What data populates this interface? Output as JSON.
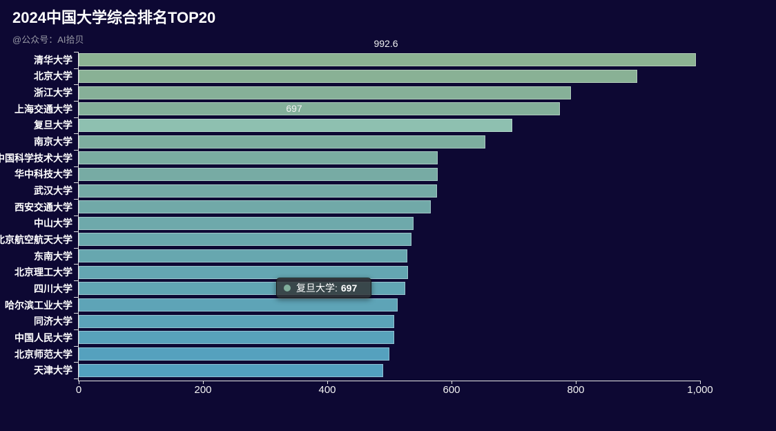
{
  "header": {
    "title": "2024中国大学综合排名TOP20",
    "subtitle": "@公众号：AI拾贝"
  },
  "colors": {
    "background": "#0d0833",
    "axis": "#e6e6e6",
    "title_text": "#ffffff",
    "subtitle_text": "#999aa6",
    "bar_border": "rgba(255,255,255,0.35)",
    "hover_color": "#8ec0b0",
    "tooltip_background": "rgba(50,54,56,0.85)"
  },
  "chart_data": {
    "type": "bar",
    "orientation": "horizontal",
    "title": "2024中国大学综合排名TOP20",
    "categories": [
      "清华大学",
      "北京大学",
      "浙江大学",
      "上海交通大学",
      "复旦大学",
      "南京大学",
      "中国科学技术大学",
      "华中科技大学",
      "武汉大学",
      "西安交通大学",
      "中山大学",
      "北京航空航天大学",
      "东南大学",
      "北京理工大学",
      "四川大学",
      "哈尔滨工业大学",
      "同济大学",
      "中国人民大学",
      "北京师范大学",
      "天津大学"
    ],
    "values": [
      992.6,
      898,
      792,
      774,
      697,
      654,
      577,
      577,
      576,
      566,
      539,
      535,
      529,
      530,
      525,
      513,
      508,
      507,
      500,
      490
    ],
    "bar_colors": [
      "#8cb293",
      "#89b195",
      "#86b098",
      "#83af9a",
      "#80ae9c",
      "#7dad9f",
      "#7aaca1",
      "#77aba4",
      "#74aaa6",
      "#71a9a8",
      "#6ea9ab",
      "#6aa8ad",
      "#67a7af",
      "#64a6b2",
      "#61a5b4",
      "#5ea4b7",
      "#5ba3b9",
      "#58a2bb",
      "#55a1be",
      "#52a0c0"
    ],
    "hovered_index": 4,
    "hover_color": "#8ec0b0",
    "xlim": [
      0,
      1000
    ],
    "x_tick_labels": [
      "0",
      "200",
      "400",
      "600",
      "800",
      "1,000"
    ],
    "x_tick_values": [
      0,
      200,
      400,
      600,
      800,
      1000
    ],
    "grid": false,
    "legend": false,
    "floating_labels": [
      {
        "text": "992.6",
        "x": 559,
        "y": 63
      },
      {
        "text": "697",
        "x": 426,
        "y": 157
      }
    ]
  },
  "tooltip": {
    "name": "复旦大学:",
    "value": "697",
    "marker_color": "#80ae9c"
  }
}
